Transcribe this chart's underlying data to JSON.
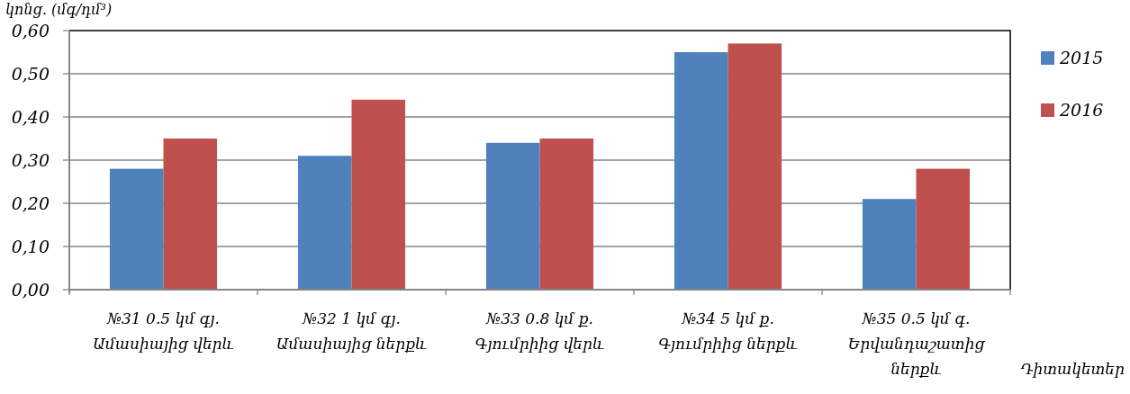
{
  "chart_data": {
    "type": "bar",
    "ylabel": "կոնց. (մգ/դմ³)",
    "xlabel": "Դիտակետեր",
    "categories": [
      "№31 0.5 կմ գյ. Ամասիայից վերև",
      "№32 1 կմ գյ. Ամասիայից ներքև",
      "№33 0.8 կմ ք. Գյումրիից վերև",
      "№34 5 կմ ք. Գյումրիից ներքև",
      "№35 0.5 կմ գ. Երվանդաշատից ներքև"
    ],
    "series": [
      {
        "name": "2015",
        "color": "#4f81bd",
        "values": [
          0.28,
          0.31,
          0.34,
          0.55,
          0.21
        ]
      },
      {
        "name": "2016",
        "color": "#c0504d",
        "values": [
          0.35,
          0.44,
          0.35,
          0.57,
          0.28
        ]
      }
    ],
    "ylim": [
      0,
      0.6
    ],
    "yticks": [
      {
        "value": 0,
        "label": "0,00"
      },
      {
        "value": 0.1,
        "label": "0,10"
      },
      {
        "value": 0.2,
        "label": "0,20"
      },
      {
        "value": 0.3,
        "label": "0,30"
      },
      {
        "value": 0.4,
        "label": "0,40"
      },
      {
        "value": 0.5,
        "label": "0,50"
      },
      {
        "value": 0.6,
        "label": "0,60"
      }
    ],
    "grid": "y",
    "legend": "right"
  }
}
